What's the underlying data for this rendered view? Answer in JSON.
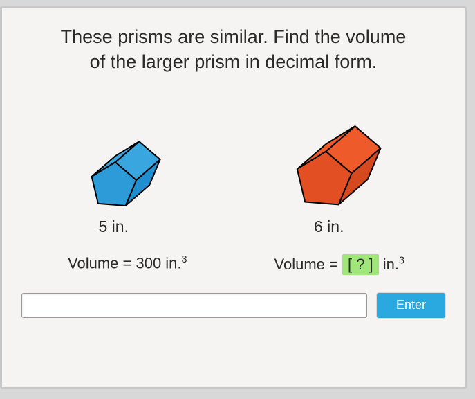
{
  "question": {
    "line1": "These prisms are similar. Find the volume",
    "line2": "of the larger prism in decimal form."
  },
  "prisms": {
    "small": {
      "dim_label": "5 in.",
      "volume_label": "Volume = 300 in.",
      "exponent": "3",
      "fill_top": "#3aa6e0",
      "fill_side": "#1f8ed0",
      "fill_front": "#2d9bd8",
      "stroke": "#000000",
      "scale": 1.0
    },
    "large": {
      "dim_label": "6 in.",
      "volume_prefix": "Volume = ",
      "answer_placeholder": "[ ? ]",
      "volume_suffix": " in.",
      "exponent": "3",
      "fill_top": "#ee5a2a",
      "fill_side": "#d6481e",
      "fill_front": "#e24f22",
      "stroke": "#000000",
      "scale": 1.22
    }
  },
  "input": {
    "value": "",
    "placeholder": ""
  },
  "enter_button": "Enter",
  "colors": {
    "page_bg": "#d8d8d8",
    "card_bg": "#f5f4f2",
    "card_border": "#c8c8c8",
    "text": "#2a2a2a",
    "answer_bg": "#a1e67a",
    "button_bg": "#2aa8e0",
    "button_text": "#ffffff"
  }
}
